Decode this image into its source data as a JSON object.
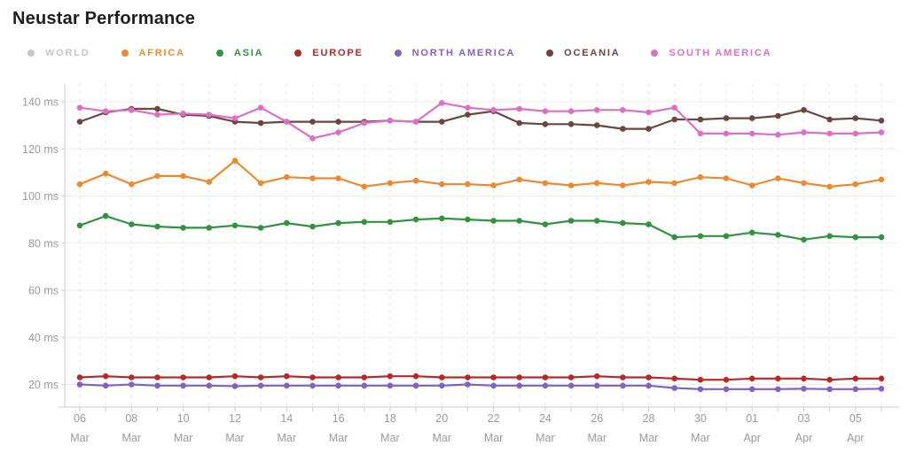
{
  "page": {
    "title": "Neustar Performance"
  },
  "colors": {
    "title_text": "#1e1e1e",
    "axis_line": "#cccccc",
    "grid_horizontal": "#ededed",
    "grid_vertical": "#e3e3e7",
    "tick_label": "#9b9b9b",
    "background": "#ffffff"
  },
  "legend": {
    "items": [
      {
        "id": "world",
        "label": "WORLD",
        "color": "#c7c7cb",
        "active": false
      },
      {
        "id": "africa",
        "label": "AFRICA",
        "color": "#ec8a2d",
        "active": true
      },
      {
        "id": "asia",
        "label": "ASIA",
        "color": "#2e9440",
        "active": true
      },
      {
        "id": "europe",
        "label": "EUROPE",
        "color": "#bb2727",
        "active": true
      },
      {
        "id": "north_america",
        "label": "NORTH AMERICA",
        "color": "#7f63c1",
        "active": true
      },
      {
        "id": "oceania",
        "label": "OCEANIA",
        "color": "#6e453e",
        "active": true
      },
      {
        "id": "south_america",
        "label": "SOUTH AMERICA",
        "color": "#dd6fc7",
        "active": true
      }
    ]
  },
  "chart_data": {
    "type": "line",
    "title": "Neustar Performance",
    "y_unit": "ms",
    "yticks": [
      20,
      40,
      60,
      80,
      100,
      120,
      140
    ],
    "ylim": [
      10,
      148
    ],
    "grid": {
      "horizontal": "solid",
      "vertical": "dashed"
    },
    "legend_position": "top",
    "x_label_every": 2,
    "x": [
      {
        "day": "06",
        "month": "Mar"
      },
      {
        "day": "07",
        "month": "Mar"
      },
      {
        "day": "08",
        "month": "Mar"
      },
      {
        "day": "09",
        "month": "Mar"
      },
      {
        "day": "10",
        "month": "Mar"
      },
      {
        "day": "11",
        "month": "Mar"
      },
      {
        "day": "12",
        "month": "Mar"
      },
      {
        "day": "13",
        "month": "Mar"
      },
      {
        "day": "14",
        "month": "Mar"
      },
      {
        "day": "15",
        "month": "Mar"
      },
      {
        "day": "16",
        "month": "Mar"
      },
      {
        "day": "17",
        "month": "Mar"
      },
      {
        "day": "18",
        "month": "Mar"
      },
      {
        "day": "19",
        "month": "Mar"
      },
      {
        "day": "20",
        "month": "Mar"
      },
      {
        "day": "21",
        "month": "Mar"
      },
      {
        "day": "22",
        "month": "Mar"
      },
      {
        "day": "23",
        "month": "Mar"
      },
      {
        "day": "24",
        "month": "Mar"
      },
      {
        "day": "25",
        "month": "Mar"
      },
      {
        "day": "26",
        "month": "Mar"
      },
      {
        "day": "27",
        "month": "Mar"
      },
      {
        "day": "28",
        "month": "Mar"
      },
      {
        "day": "29",
        "month": "Mar"
      },
      {
        "day": "30",
        "month": "Mar"
      },
      {
        "day": "31",
        "month": "Mar"
      },
      {
        "day": "01",
        "month": "Apr"
      },
      {
        "day": "02",
        "month": "Apr"
      },
      {
        "day": "03",
        "month": "Apr"
      },
      {
        "day": "04",
        "month": "Apr"
      },
      {
        "day": "05",
        "month": "Apr"
      },
      {
        "day": "06",
        "month": "Apr"
      }
    ],
    "hidden_series": [
      "WORLD"
    ],
    "series": [
      {
        "id": "africa",
        "name": "AFRICA",
        "values": [
          105,
          109.5,
          105,
          108.5,
          108.5,
          106,
          115,
          105.5,
          108,
          107.5,
          107.5,
          104,
          105.5,
          106.5,
          105,
          105,
          104.5,
          107,
          105.5,
          104.5,
          105.5,
          104.5,
          106,
          105.5,
          108,
          107.5,
          104.5,
          107.5,
          105.5,
          104,
          105,
          107
        ]
      },
      {
        "id": "asia",
        "name": "ASIA",
        "values": [
          87.5,
          91.5,
          88,
          87,
          86.5,
          86.5,
          87.5,
          86.5,
          88.5,
          87,
          88.5,
          89,
          89,
          90,
          90.5,
          90,
          89.5,
          89.5,
          88,
          89.5,
          89.5,
          88.5,
          88,
          82.5,
          83,
          83,
          84.5,
          83.5,
          81.5,
          83,
          82.5,
          82.5
        ]
      },
      {
        "id": "europe",
        "name": "EUROPE",
        "values": [
          23,
          23.5,
          23,
          23,
          23,
          23,
          23.5,
          23,
          23.5,
          23,
          23,
          23,
          23.5,
          23.5,
          23,
          23,
          23,
          23,
          23,
          23,
          23.5,
          23,
          23,
          22.5,
          22,
          22,
          22.5,
          22.5,
          22.5,
          22,
          22.5,
          22.5
        ]
      },
      {
        "id": "north_america",
        "name": "NORTH AMERICA",
        "values": [
          20,
          19.5,
          20,
          19.5,
          19.5,
          19.5,
          19.3,
          19.5,
          19.5,
          19.5,
          19.5,
          19.5,
          19.5,
          19.5,
          19.5,
          20,
          19.5,
          19.5,
          19.5,
          19.5,
          19.5,
          19.5,
          19.5,
          18.5,
          18,
          18,
          18,
          18,
          18.2,
          18,
          18,
          18.2
        ]
      },
      {
        "id": "oceania",
        "name": "OCEANIA",
        "values": [
          131.5,
          135.5,
          137,
          137,
          134.5,
          134,
          131.5,
          131,
          131.5,
          131.5,
          131.5,
          131.5,
          132,
          131.5,
          131.5,
          134.5,
          136,
          131,
          130.5,
          130.5,
          130,
          128.5,
          128.5,
          132.5,
          132.5,
          133,
          133,
          134,
          136.5,
          132.5,
          133,
          132
        ]
      },
      {
        "id": "south_america",
        "name": "SOUTH AMERICA",
        "values": [
          137.5,
          136,
          136.5,
          134.5,
          135,
          134.5,
          133,
          137.5,
          131.5,
          124.5,
          127,
          131,
          132,
          131.5,
          139.5,
          137.5,
          136.5,
          137,
          136,
          136,
          136.5,
          136.5,
          135.5,
          137.5,
          126.5,
          126.5,
          126.5,
          126,
          127,
          126.5,
          126.5,
          127
        ]
      }
    ]
  }
}
